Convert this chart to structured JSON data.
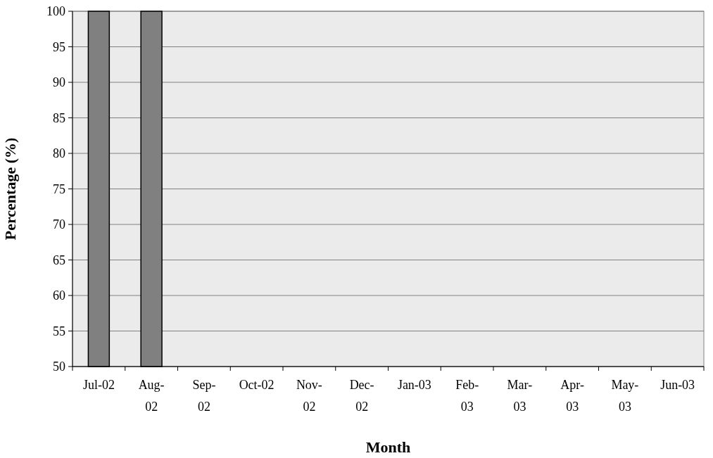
{
  "chart_data": {
    "type": "bar",
    "xlabel": "Month",
    "ylabel": "Percentage (%)",
    "categories": [
      "Jul-02",
      "Aug-02",
      "Sep-02",
      "Oct-02",
      "Nov-02",
      "Dec-02",
      "Jan-03",
      "Feb-03",
      "Mar-03",
      "Apr-03",
      "May-03",
      "Jun-03"
    ],
    "values": [
      100,
      100,
      null,
      null,
      null,
      null,
      null,
      null,
      null,
      null,
      null,
      null
    ],
    "color": "#808080",
    "ylim": [
      50,
      100
    ],
    "yticks": [
      50,
      55,
      60,
      65,
      70,
      75,
      80,
      85,
      90,
      95,
      100
    ],
    "grid": "y"
  }
}
